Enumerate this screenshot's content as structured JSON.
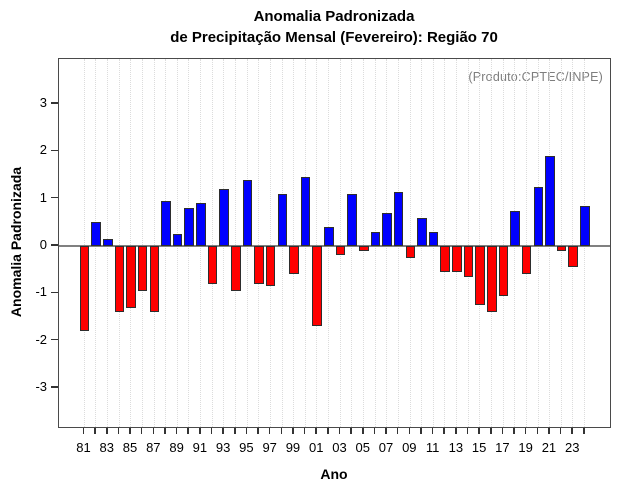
{
  "title": {
    "line1": "Anomalia Padronizada",
    "line2": "de Precipitação Mensal (Fevereiro): Região 70"
  },
  "annotation": "(Produto:CPTEC/INPE)",
  "axes": {
    "x_label": "Ano",
    "y_label": "Anomalia Padronizada",
    "x_tick_labels": [
      "81",
      "83",
      "85",
      "87",
      "89",
      "91",
      "93",
      "95",
      "97",
      "99",
      "01",
      "03",
      "05",
      "07",
      "09",
      "11",
      "13",
      "15",
      "17",
      "19",
      "21",
      "23"
    ],
    "y_tick_labels": [
      "3",
      "2",
      "1",
      "0",
      "-1",
      "-2",
      "-3"
    ]
  },
  "colors": {
    "positive_bar": "#0000ff",
    "negative_bar": "#ff0000",
    "bar_border": "#2e2e2e",
    "zero_line": "#808080",
    "gridline": "#dcdcdc",
    "annotation_text": "#7e7e7e",
    "axis_box": "#4a4a4a"
  },
  "chart_data": {
    "type": "bar",
    "title": "Anomalia Padronizada de Precipitação Mensal (Fevereiro): Região 70",
    "xlabel": "Ano",
    "ylabel": "Anomalia Padronizada",
    "annotation": "(Produto:CPTEC/INPE)",
    "ylim": [
      -3.9,
      3.9
    ],
    "y_ticks": [
      3,
      2,
      1,
      0,
      -1,
      -2,
      -3
    ],
    "grid": "vertical-dotted-per-year",
    "legend": "none",
    "positive_color": "#0000ff",
    "negative_color": "#ff0000",
    "years": [
      1981,
      1982,
      1983,
      1984,
      1985,
      1986,
      1987,
      1988,
      1989,
      1990,
      1991,
      1992,
      1993,
      1994,
      1995,
      1996,
      1997,
      1998,
      1999,
      2000,
      2001,
      2002,
      2003,
      2004,
      2005,
      2006,
      2007,
      2008,
      2009,
      2010,
      2011,
      2012,
      2013,
      2014,
      2015,
      2016,
      2017,
      2018,
      2019,
      2020,
      2021,
      2022,
      2023,
      2024
    ],
    "values": [
      -1.8,
      0.5,
      0.15,
      -1.4,
      -1.3,
      -0.95,
      -1.4,
      0.95,
      0.25,
      0.8,
      0.9,
      -0.8,
      1.2,
      -0.95,
      1.4,
      -0.8,
      -0.85,
      1.1,
      -0.6,
      1.45,
      -1.7,
      0.4,
      -0.2,
      1.1,
      -0.1,
      0.3,
      0.7,
      1.15,
      -0.25,
      0.6,
      0.3,
      -0.55,
      -0.55,
      -0.65,
      -1.25,
      -1.4,
      -1.05,
      0.75,
      -0.6,
      1.25,
      1.9,
      -0.1,
      -0.45,
      0.85
    ]
  }
}
